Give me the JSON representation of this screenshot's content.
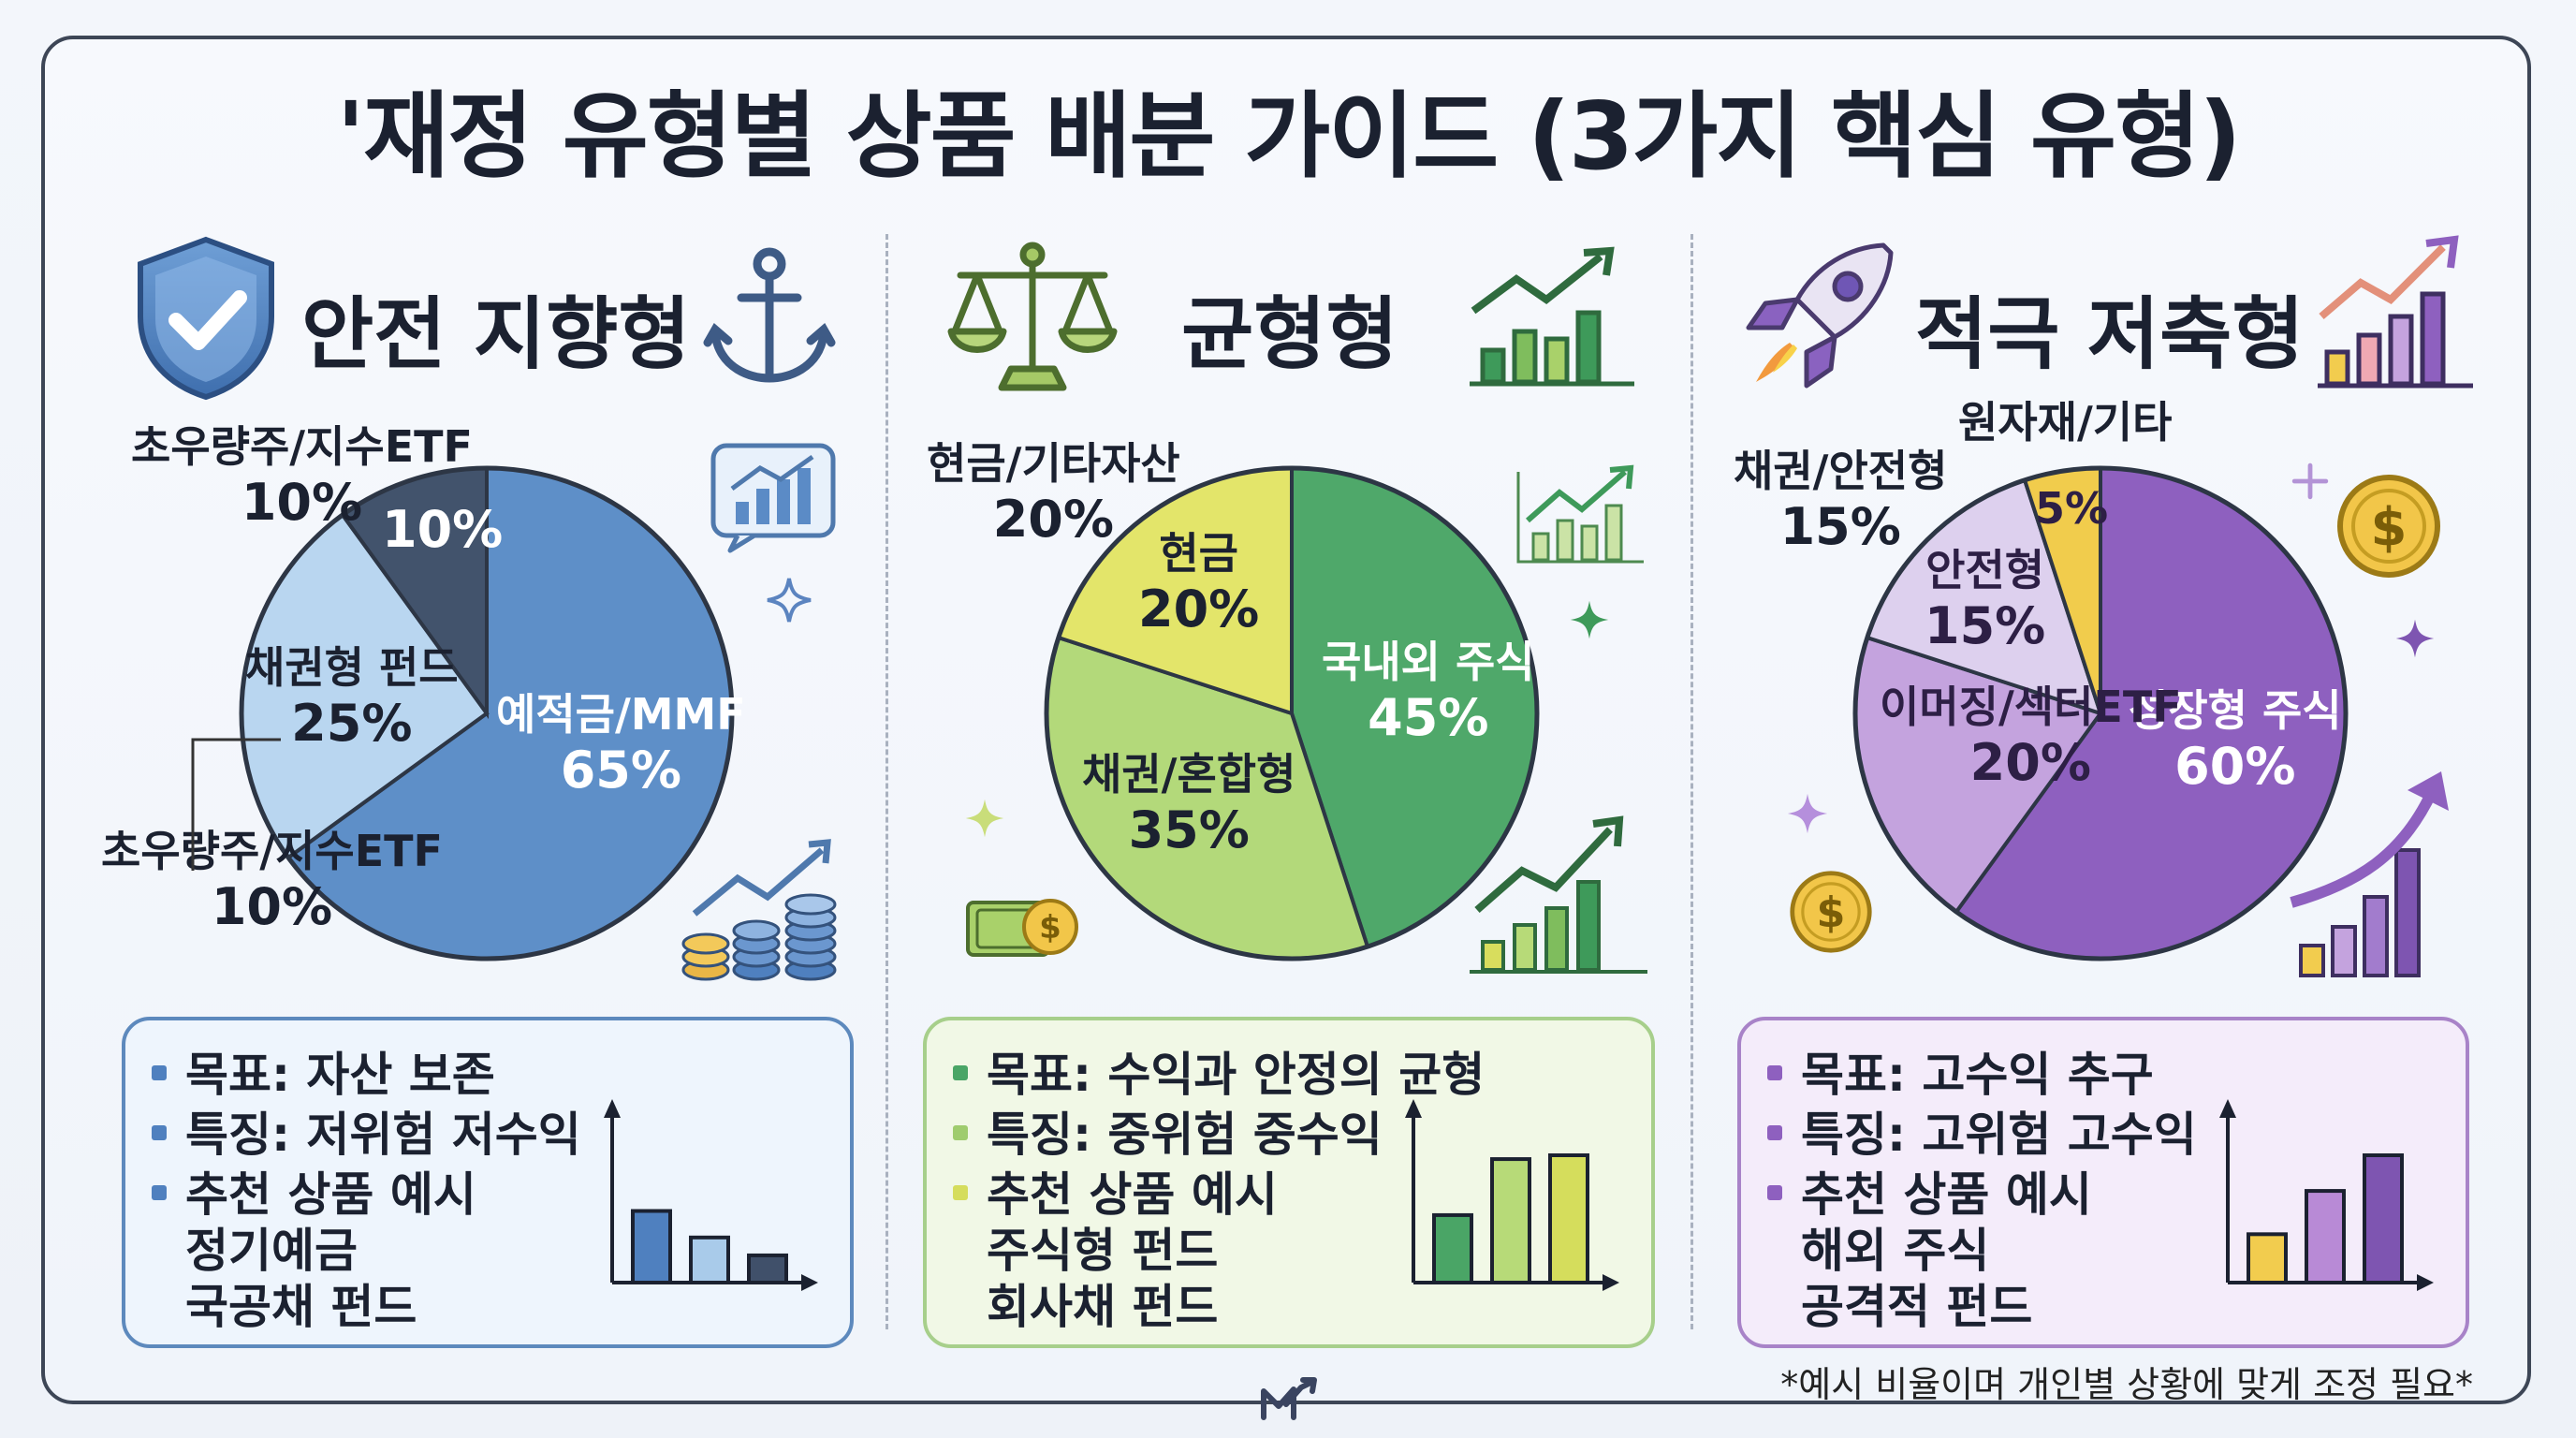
{
  "title": "'재정 유형별 상품 배분 가이드 (3가지 핵심 유형)",
  "footnote": "*예시 비율이며 개인별 상황에 맞게 조정 필요*",
  "chart_data": [
    {
      "type": "pie",
      "title": "안전 지향형",
      "labels": [
        "예적금/MMF",
        "채권형 펀드",
        "초우량주/지수ETF",
        "초우량주/지수ETF"
      ],
      "values": [
        65,
        25,
        10,
        10
      ],
      "value_labels": [
        "65%",
        "25%",
        "10%",
        "10%"
      ],
      "colors": [
        "#5e8fc8",
        "#b9d6f0",
        "#42536c",
        "#42536c"
      ]
    },
    {
      "type": "pie",
      "title": "균형형",
      "labels": [
        "국내외 주식",
        "채권/혼합형",
        "현금"
      ],
      "values": [
        45,
        35,
        20
      ],
      "value_labels": [
        "45%",
        "35%",
        "20%"
      ],
      "outer_label": {
        "text": "현금/기타자산",
        "value": "20%"
      },
      "colors": [
        "#4fa86a",
        "#b3d97a",
        "#e3e56a"
      ]
    },
    {
      "type": "pie",
      "title": "적극 저축형",
      "labels": [
        "성장형 주식",
        "이머징/섹터ETF",
        "안전형",
        "원자재/기타"
      ],
      "values": [
        60,
        20,
        15,
        5
      ],
      "value_labels": [
        "60%",
        "20%",
        "15%",
        "5%"
      ],
      "outer_labels": [
        {
          "text": "채권/안전형",
          "value": "15%"
        },
        {
          "text": "원자재/기타",
          "value": ""
        }
      ],
      "colors": [
        "#8e60bf",
        "#c4a3de",
        "#ddd0ee",
        "#f1cc4c"
      ]
    }
  ],
  "panels": [
    {
      "heading": "안전 지향형",
      "lines": [
        "목표: 자산 보존",
        "특징: 저위험 저수익",
        "추천 상품 예시",
        "정기예금",
        "국공채 펀드"
      ],
      "bars": [
        1.0,
        0.63,
        0.38
      ],
      "bar_colors": [
        "#4f80bf",
        "#a9cbea",
        "#40506a"
      ]
    },
    {
      "heading": "균형형",
      "lines": [
        "목표: 수익과 안정의 균형",
        "특징: 중위험 중수익",
        "추천 상품 예시",
        "주식형 펀드",
        "회사채 펀드"
      ],
      "bars": [
        0.53,
        0.97,
        1.0
      ],
      "bar_colors": [
        "#4aa566",
        "#b7da78",
        "#d5dd5c"
      ]
    },
    {
      "heading": "적극 저축형",
      "lines": [
        "목표: 고수익 추구",
        "특징: 고위험 고수익",
        "추천 상품 예시",
        "해외 주식",
        "공격적 펀드"
      ],
      "bars": [
        0.38,
        0.72,
        1.0
      ],
      "bar_colors": [
        "#f2cc4e",
        "#b88ad6",
        "#7e55b1"
      ]
    }
  ],
  "colors": {
    "frame": "#3d4656",
    "safe_panel_bg": "#eef5fd",
    "safe_panel_border": "#5d89bd",
    "balanced_panel_bg": "#f1f8e6",
    "balanced_panel_border": "#a7cf8b",
    "aggressive_panel_bg": "#f4ecfa",
    "aggressive_panel_border": "#a883c8"
  },
  "icons": [
    "shield-check-icon",
    "anchor-icon",
    "scale-icon",
    "growth-chart-icon",
    "rocket-icon",
    "dollar-coin-icon",
    "coin-stack-icon",
    "sparkle-icon",
    "cash-icon",
    "logo-icon"
  ]
}
